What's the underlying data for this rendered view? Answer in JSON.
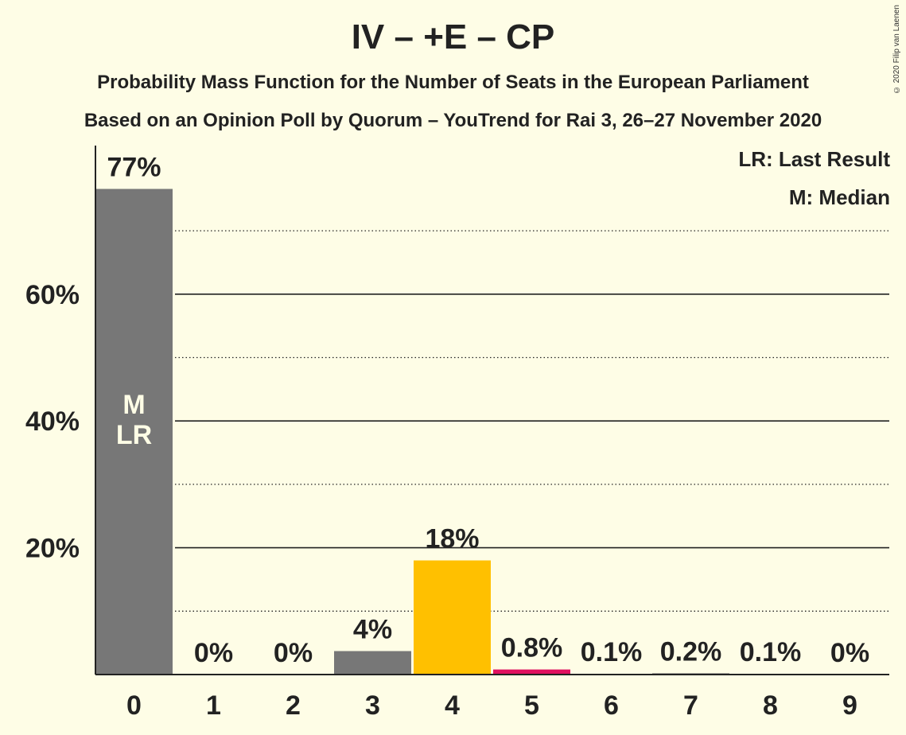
{
  "header": {
    "title": "IV – +E – CP",
    "subtitle1": "Probability Mass Function for the Number of Seats in the European Parliament",
    "subtitle2": "Based on an Opinion Poll by Quorum – YouTrend for Rai 3, 26–27 November 2020",
    "copyright": "© 2020 Filip van Laenen"
  },
  "legend": {
    "last_result": "LR: Last Result",
    "median": "M: Median"
  },
  "colors": {
    "background": "#fefde6",
    "grey_bar": "#777777",
    "yellow_bar": "#ffc000",
    "red_bar": "#e0115f"
  },
  "chart_data": {
    "type": "bar",
    "categories": [
      "0",
      "1",
      "2",
      "3",
      "4",
      "5",
      "6",
      "7",
      "8",
      "9"
    ],
    "values": [
      76.6,
      0,
      0,
      3.7,
      18.0,
      0.8,
      0.1,
      0.2,
      0.1,
      0
    ],
    "labels": [
      "77%",
      "0%",
      "0%",
      "4%",
      "18%",
      "0.8%",
      "0.1%",
      "0.2%",
      "0.1%",
      "0%"
    ],
    "bar_colors": [
      "grey",
      "grey",
      "grey",
      "grey",
      "yellow",
      "red",
      "grey",
      "grey",
      "grey",
      "grey"
    ],
    "inner_labels": {
      "0": [
        "M",
        "LR"
      ]
    },
    "ylim": [
      0,
      83
    ],
    "yticks": [
      20,
      40,
      60
    ],
    "ytick_labels": [
      "20%",
      "40%",
      "60%"
    ],
    "minor_gridlines": [
      10,
      30,
      50,
      70
    ],
    "title": "IV – +E – CP",
    "xlabel": "",
    "ylabel": ""
  }
}
